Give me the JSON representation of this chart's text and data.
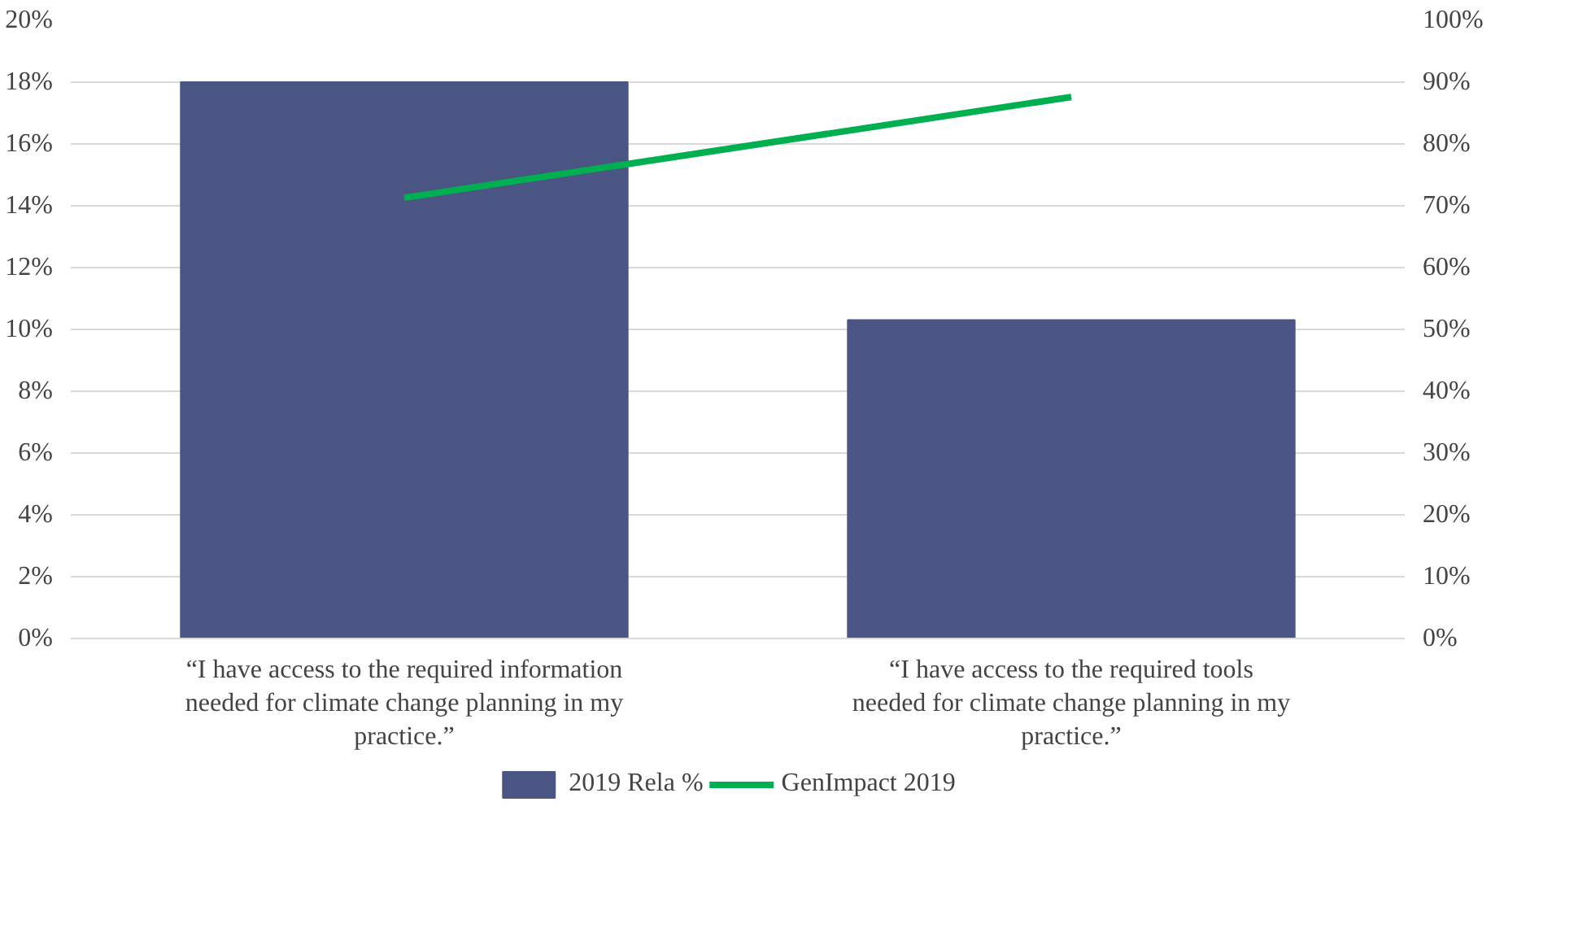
{
  "chart_data": {
    "type": "bar",
    "categories": [
      "“I have access to the required information needed for climate change planning in my practice.”",
      "“I have access to the required tools needed for climate change planning in my practice.”"
    ],
    "series": [
      {
        "name": "2019 Rela %",
        "color": "#4a5584",
        "values": [
          18.0,
          10.3
        ]
      },
      {
        "name": "GenImpact 2019",
        "color": "#00b050",
        "type": "line",
        "axis": "y2",
        "values": [
          71.3,
          87.6
        ]
      }
    ],
    "ylim": [
      0,
      20
    ],
    "yticks": [
      {
        "value": 0,
        "label": "0%"
      },
      {
        "value": 2,
        "label": "2%"
      },
      {
        "value": 4,
        "label": "4%"
      },
      {
        "value": 6,
        "label": "6%"
      },
      {
        "value": 8,
        "label": "8%"
      },
      {
        "value": 10,
        "label": "10%"
      },
      {
        "value": 12,
        "label": "12%"
      },
      {
        "value": 14,
        "label": "14%"
      },
      {
        "value": 16,
        "label": "16%"
      },
      {
        "value": 18,
        "label": "18%"
      },
      {
        "value": 20,
        "label": "20%"
      }
    ],
    "y2lim": [
      0,
      100
    ],
    "y2ticks": [
      {
        "value": 0,
        "label": "0%"
      },
      {
        "value": 10,
        "label": "10%"
      },
      {
        "value": 20,
        "label": "20%"
      },
      {
        "value": 30,
        "label": "30%"
      },
      {
        "value": 40,
        "label": "40%"
      },
      {
        "value": 50,
        "label": "50%"
      },
      {
        "value": 60,
        "label": "60%"
      },
      {
        "value": 70,
        "label": "70%"
      },
      {
        "value": 80,
        "label": "80%"
      },
      {
        "value": 90,
        "label": "90%"
      },
      {
        "value": 100,
        "label": "100%"
      }
    ],
    "grid": "y",
    "legend": "bottom",
    "marker": "none",
    "line_style": "solid"
  }
}
